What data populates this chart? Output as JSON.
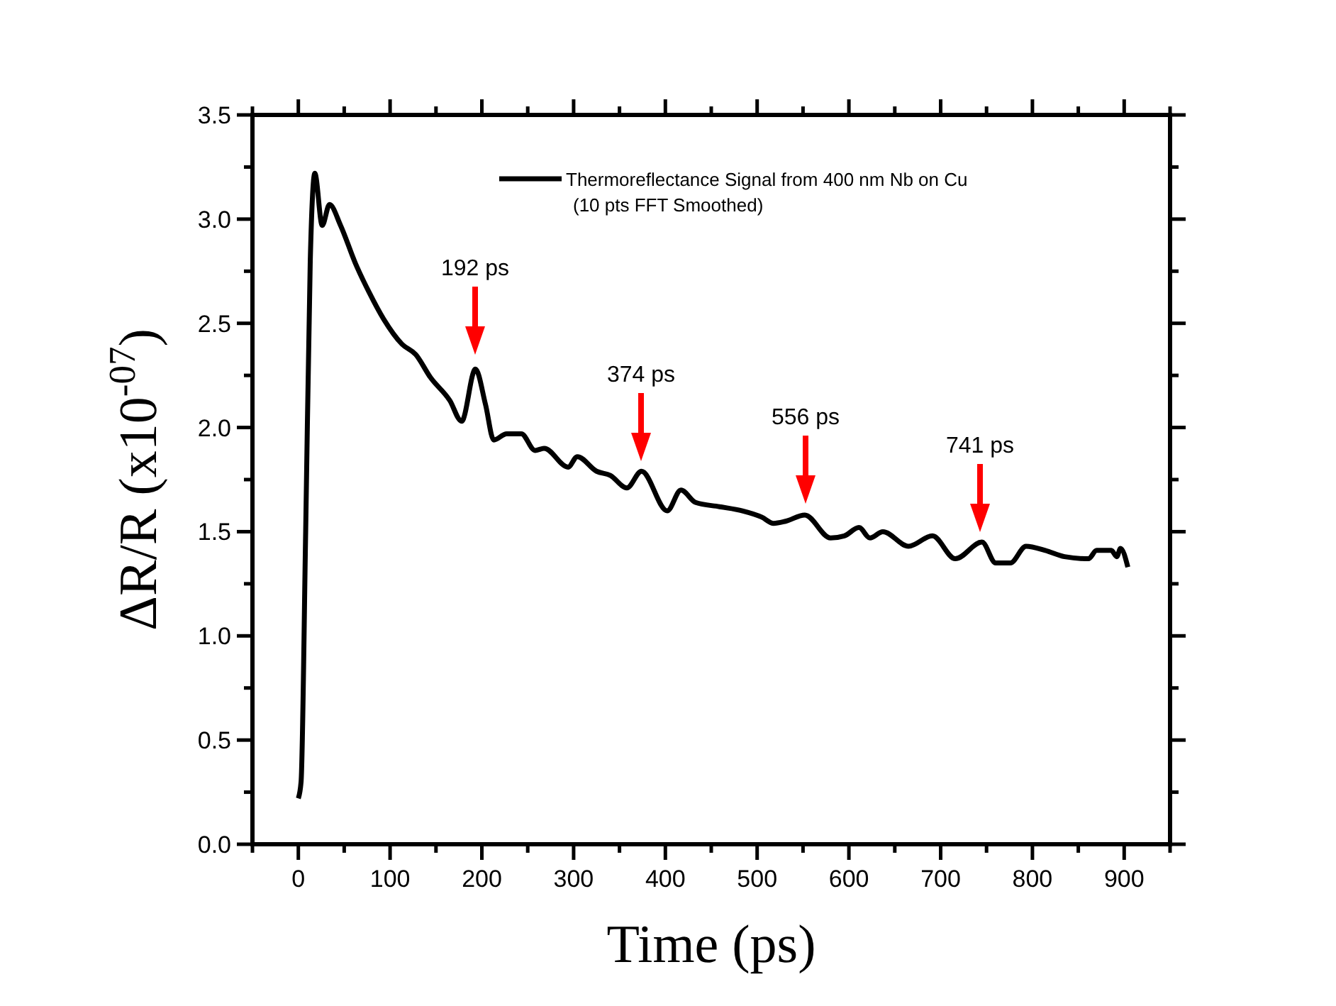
{
  "chart_data": {
    "type": "line",
    "xlabel": "Time (ps)",
    "ylabel": "ΔR/R (x10$^{-07}$)",
    "xlim": [
      -50,
      950
    ],
    "xticks": [
      {
        "value": -50,
        "label": null
      },
      0,
      {
        "value": 50,
        "label": null
      },
      100,
      {
        "value": 150,
        "label": null
      },
      200,
      {
        "value": 250,
        "label": null
      },
      300,
      {
        "value": 350,
        "label": null
      },
      400,
      {
        "value": 450,
        "label": null
      },
      500,
      {
        "value": 550,
        "label": null
      },
      600,
      {
        "value": 650,
        "label": null
      },
      700,
      {
        "value": 750,
        "label": null
      },
      800,
      {
        "value": 850,
        "label": null
      },
      900,
      {
        "value": 950,
        "label": null
      }
    ],
    "ylim": [
      0,
      3.5
    ],
    "yticks": [
      {
        "value": 0,
        "label": "0.0"
      },
      {
        "value": 0.25,
        "label": null
      },
      {
        "value": 0.5,
        "label": "0.5"
      },
      {
        "value": 0.75,
        "label": null
      },
      {
        "value": 1,
        "label": "1.0"
      },
      {
        "value": 1.25,
        "label": null
      },
      {
        "value": 1.5,
        "label": "1.5"
      },
      {
        "value": 1.75,
        "label": null
      },
      {
        "value": 2,
        "label": "2.0"
      },
      {
        "value": 2.25,
        "label": null
      },
      {
        "value": 2.5,
        "label": "2.5"
      },
      {
        "value": 2.75,
        "label": null
      },
      {
        "value": 3,
        "label": "3.0"
      },
      {
        "value": 3.25,
        "label": null
      },
      {
        "value": 3.5,
        "label": "3.5"
      }
    ],
    "grid": false,
    "legend": "top right",
    "marker": "none",
    "line_style": "solid",
    "series": [
      {
        "name": "Thermoreflectance Signal from 400 nm Nb on Cu",
        "color": "#000000",
        "x": [
          0,
          3,
          8,
          13,
          18,
          26,
          34,
          46,
          62,
          77,
          93,
          113,
          128,
          144,
          165,
          178,
          193,
          204,
          213,
          227,
          243,
          258,
          268,
          294,
          304,
          325,
          340,
          358,
          374,
          402,
          417,
          433,
          459,
          484,
          505,
          518,
          531,
          552,
          580,
          595,
          611,
          623,
          637,
          665,
          691,
          716,
          745,
          760,
          776,
          793,
          814,
          835,
          861,
          870,
          886,
          892,
          896,
          904
        ],
        "values": [
          0.22,
          0.3,
          1.5,
          2.8,
          3.22,
          2.97,
          3.07,
          2.97,
          2.79,
          2.65,
          2.52,
          2.4,
          2.35,
          2.24,
          2.13,
          2.03,
          2.28,
          2.11,
          1.94,
          1.97,
          1.97,
          1.89,
          1.9,
          1.81,
          1.86,
          1.79,
          1.77,
          1.71,
          1.79,
          1.6,
          1.7,
          1.64,
          1.62,
          1.6,
          1.57,
          1.54,
          1.55,
          1.58,
          1.47,
          1.48,
          1.52,
          1.47,
          1.5,
          1.43,
          1.48,
          1.37,
          1.45,
          1.35,
          1.35,
          1.43,
          1.41,
          1.38,
          1.37,
          1.41,
          1.41,
          1.38,
          1.42,
          1.33
        ]
      }
    ],
    "annotations": [
      "(10 pts FFT Smoothed)",
      "192 ps",
      "374 ps",
      "556 ps",
      "741 ps"
    ]
  }
}
